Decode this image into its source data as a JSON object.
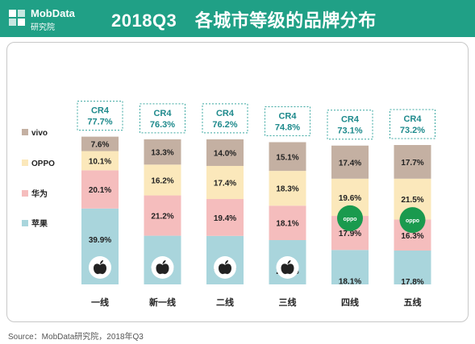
{
  "header": {
    "logo_brand": "MobData",
    "logo_sub": "研究院",
    "title": "2018Q3　各城市等级的品牌分布"
  },
  "source": "Source：MobData研究院，2018年Q3",
  "colors": {
    "header_bg": "#20a086",
    "vivo": "#c4b0a2",
    "OPPO": "#fbe8bb",
    "huawei": "#f5bdbd",
    "apple": "#a9d5dc",
    "cr4_border": "#3aa7a0",
    "cr4_text": "#1e8a8c"
  },
  "icons": {
    "apple": "apple-logo-icon",
    "oppo": "oppo-logo-icon",
    "logo": "mobdata-logo-icon"
  },
  "chart_data": {
    "type": "bar",
    "stacked": true,
    "normalized": true,
    "categories": [
      "一线",
      "新一线",
      "二线",
      "三线",
      "四线",
      "五线"
    ],
    "cr4_label": "CR4",
    "cr4": [
      "77.7%",
      "76.3%",
      "76.2%",
      "74.8%",
      "73.1%",
      "73.2%"
    ],
    "series": [
      {
        "name": "苹果",
        "key": "apple",
        "values": [
          39.9,
          25.6,
          25.5,
          23.3,
          18.1,
          17.8
        ]
      },
      {
        "name": "华为",
        "key": "huawei",
        "values": [
          20.1,
          21.2,
          19.4,
          18.1,
          17.9,
          16.3
        ]
      },
      {
        "name": "OPPO",
        "key": "OPPO",
        "values": [
          10.1,
          16.2,
          17.4,
          18.3,
          19.6,
          21.5
        ]
      },
      {
        "name": "vivo",
        "key": "vivo",
        "values": [
          7.6,
          13.3,
          14.0,
          15.1,
          17.4,
          17.7
        ]
      }
    ],
    "legend": [
      "vivo",
      "OPPO",
      "华为",
      "苹果"
    ],
    "legend_position": "left",
    "grid": false,
    "brand_logo_on_top_share": {
      "apple_categories": [
        "一线",
        "新一线",
        "二线",
        "三线"
      ],
      "oppo_categories": [
        "四线",
        "五线"
      ]
    }
  }
}
